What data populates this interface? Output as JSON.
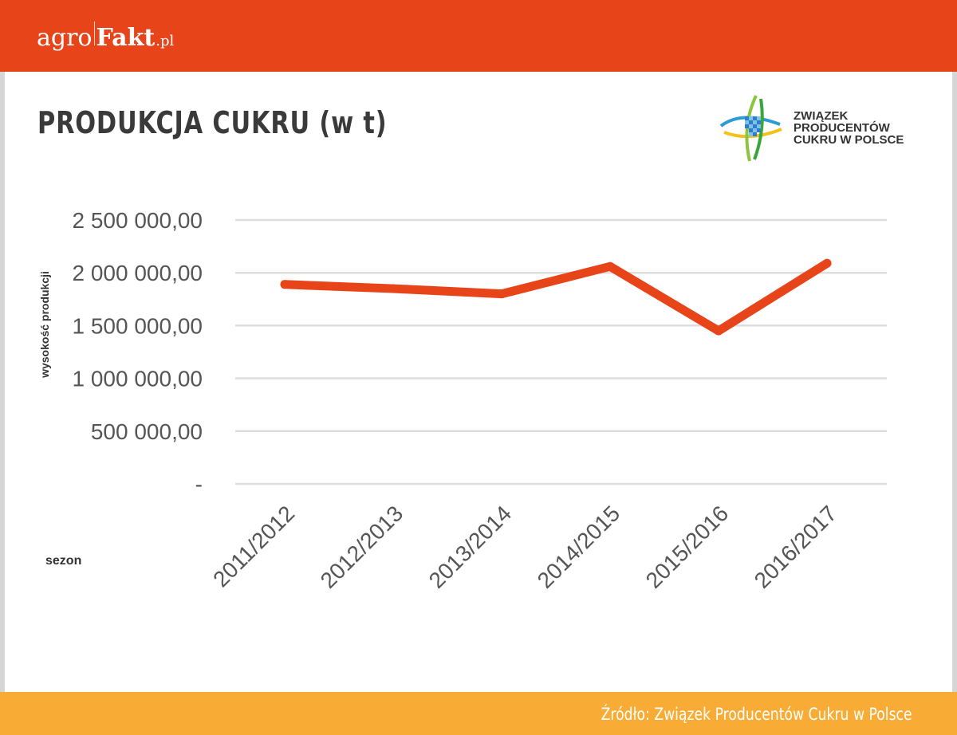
{
  "header": {
    "brand_part1": "agro",
    "brand_part2": "Fakt",
    "brand_part3": ".pl",
    "brand_color": "#e8441a"
  },
  "org_logo": {
    "line1": "ZWIĄZEK",
    "line2": "PRODUCENTÓW",
    "line3": "CUKRU W POLSCE",
    "icon": "sugar-producers-logo-icon"
  },
  "footer": {
    "source": "Źródło: Związek Producentów Cukru w Polsce",
    "bar_color": "#f8ac35"
  },
  "chart_data": {
    "type": "line",
    "title": "PRODUKCJA CUKRU (w t)",
    "xlabel": "sezon",
    "ylabel": "wysokość produkcji",
    "categories": [
      "2011/2012",
      "2012/2013",
      "2013/2014",
      "2014/2015",
      "2015/2016",
      "2016/2017"
    ],
    "series": [
      {
        "values": [
          1890000,
          1850000,
          1800000,
          2060000,
          1450000,
          2090000
        ],
        "color": "#e8441a"
      }
    ],
    "ylim": [
      0,
      2500000
    ],
    "yticks": [
      0,
      500000,
      1000000,
      1500000,
      2000000,
      2500000
    ],
    "ytick_labels": [
      "-",
      "500 000,00",
      "1 000 000,00",
      "1 500 000,00",
      "2 000 000,00",
      "2 500 000,00"
    ],
    "grid": true,
    "legend": "none"
  }
}
